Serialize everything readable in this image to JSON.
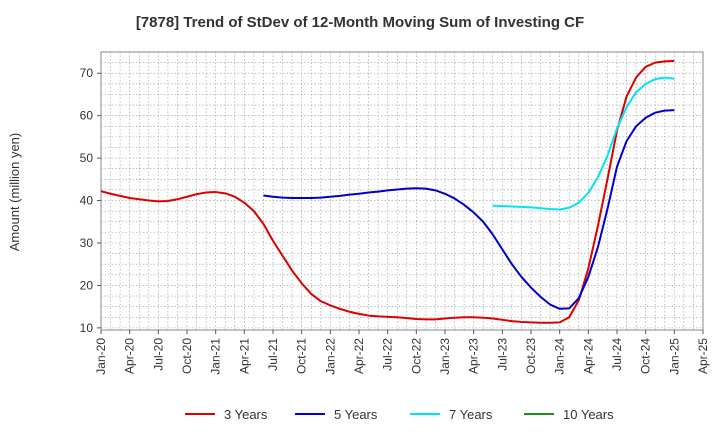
{
  "chart_data": {
    "type": "line",
    "title": "[7878]  Trend of StDev of 12-Month Moving Sum of Investing CF",
    "xlabel": "",
    "ylabel": "Amount (million yen)",
    "ylim": [
      9.5,
      75
    ],
    "yticks": [
      10,
      20,
      30,
      40,
      50,
      60,
      70
    ],
    "xticks": [
      "Jan-20",
      "Apr-20",
      "Jul-20",
      "Oct-20",
      "Jan-21",
      "Apr-21",
      "Jul-21",
      "Oct-21",
      "Jan-22",
      "Apr-22",
      "Jul-22",
      "Oct-22",
      "Jan-23",
      "Apr-23",
      "Jul-23",
      "Oct-23",
      "Jan-24",
      "Apr-24",
      "Jul-24",
      "Oct-24",
      "Jan-25",
      "Apr-25"
    ],
    "grid": true,
    "legend_position": "bottom",
    "series": [
      {
        "name": "3 Years",
        "color": "#dd0000",
        "points": [
          [
            "2020-01",
            42.2
          ],
          [
            "2020-02",
            41.6
          ],
          [
            "2020-03",
            41.1
          ],
          [
            "2020-04",
            40.6
          ],
          [
            "2020-05",
            40.3
          ],
          [
            "2020-06",
            40.0
          ],
          [
            "2020-07",
            39.8
          ],
          [
            "2020-08",
            39.9
          ],
          [
            "2020-09",
            40.3
          ],
          [
            "2020-10",
            40.9
          ],
          [
            "2020-11",
            41.5
          ],
          [
            "2020-12",
            41.9
          ],
          [
            "2021-01",
            42.0
          ],
          [
            "2021-02",
            41.7
          ],
          [
            "2021-03",
            40.9
          ],
          [
            "2021-04",
            39.5
          ],
          [
            "2021-05",
            37.5
          ],
          [
            "2021-06",
            34.5
          ],
          [
            "2021-07",
            30.5
          ],
          [
            "2021-08",
            27.0
          ],
          [
            "2021-09",
            23.5
          ],
          [
            "2021-10",
            20.5
          ],
          [
            "2021-11",
            18.0
          ],
          [
            "2021-12",
            16.3
          ],
          [
            "2022-01",
            15.3
          ],
          [
            "2022-02",
            14.5
          ],
          [
            "2022-03",
            13.8
          ],
          [
            "2022-04",
            13.3
          ],
          [
            "2022-05",
            12.9
          ],
          [
            "2022-06",
            12.7
          ],
          [
            "2022-07",
            12.6
          ],
          [
            "2022-08",
            12.5
          ],
          [
            "2022-09",
            12.3
          ],
          [
            "2022-10",
            12.1
          ],
          [
            "2022-11",
            12.0
          ],
          [
            "2022-12",
            12.0
          ],
          [
            "2023-01",
            12.2
          ],
          [
            "2023-02",
            12.4
          ],
          [
            "2023-03",
            12.5
          ],
          [
            "2023-04",
            12.5
          ],
          [
            "2023-05",
            12.4
          ],
          [
            "2023-06",
            12.2
          ],
          [
            "2023-07",
            11.9
          ],
          [
            "2023-08",
            11.6
          ],
          [
            "2023-09",
            11.4
          ],
          [
            "2023-10",
            11.3
          ],
          [
            "2023-11",
            11.2
          ],
          [
            "2023-12",
            11.2
          ],
          [
            "2024-01",
            11.3
          ],
          [
            "2024-02",
            12.5
          ],
          [
            "2024-03",
            16.5
          ],
          [
            "2024-04",
            24.0
          ],
          [
            "2024-05",
            34.0
          ],
          [
            "2024-06",
            45.0
          ],
          [
            "2024-07",
            56.5
          ],
          [
            "2024-08",
            64.5
          ],
          [
            "2024-09",
            69.0
          ],
          [
            "2024-10",
            71.5
          ],
          [
            "2024-11",
            72.5
          ],
          [
            "2024-12",
            72.8
          ],
          [
            "2025-01",
            72.9
          ]
        ]
      },
      {
        "name": "5 Years",
        "color": "#0000cc",
        "points": [
          [
            "2021-06",
            41.2
          ],
          [
            "2021-07",
            40.9
          ],
          [
            "2021-08",
            40.7
          ],
          [
            "2021-09",
            40.6
          ],
          [
            "2021-10",
            40.6
          ],
          [
            "2021-11",
            40.6
          ],
          [
            "2021-12",
            40.7
          ],
          [
            "2022-01",
            40.9
          ],
          [
            "2022-02",
            41.1
          ],
          [
            "2022-03",
            41.4
          ],
          [
            "2022-04",
            41.6
          ],
          [
            "2022-05",
            41.9
          ],
          [
            "2022-06",
            42.1
          ],
          [
            "2022-07",
            42.4
          ],
          [
            "2022-08",
            42.6
          ],
          [
            "2022-09",
            42.8
          ],
          [
            "2022-10",
            42.9
          ],
          [
            "2022-11",
            42.8
          ],
          [
            "2022-12",
            42.4
          ],
          [
            "2023-01",
            41.6
          ],
          [
            "2023-02",
            40.5
          ],
          [
            "2023-03",
            39.0
          ],
          [
            "2023-04",
            37.2
          ],
          [
            "2023-05",
            35.0
          ],
          [
            "2023-06",
            32.0
          ],
          [
            "2023-07",
            28.5
          ],
          [
            "2023-08",
            25.0
          ],
          [
            "2023-09",
            22.0
          ],
          [
            "2023-10",
            19.5
          ],
          [
            "2023-11",
            17.3
          ],
          [
            "2023-12",
            15.5
          ],
          [
            "2024-01",
            14.5
          ],
          [
            "2024-02",
            14.6
          ],
          [
            "2024-03",
            17.0
          ],
          [
            "2024-04",
            22.0
          ],
          [
            "2024-05",
            29.0
          ],
          [
            "2024-06",
            38.0
          ],
          [
            "2024-07",
            48.0
          ],
          [
            "2024-08",
            54.0
          ],
          [
            "2024-09",
            57.5
          ],
          [
            "2024-10",
            59.5
          ],
          [
            "2024-11",
            60.7
          ],
          [
            "2024-12",
            61.2
          ],
          [
            "2025-01",
            61.3
          ]
        ]
      },
      {
        "name": "7 Years",
        "color": "#00e5ee",
        "points": [
          [
            "2023-06",
            38.8
          ],
          [
            "2023-07",
            38.7
          ],
          [
            "2023-08",
            38.6
          ],
          [
            "2023-09",
            38.5
          ],
          [
            "2023-10",
            38.4
          ],
          [
            "2023-11",
            38.2
          ],
          [
            "2023-12",
            38.0
          ],
          [
            "2024-01",
            37.9
          ],
          [
            "2024-02",
            38.3
          ],
          [
            "2024-03",
            39.5
          ],
          [
            "2024-04",
            41.8
          ],
          [
            "2024-05",
            45.5
          ],
          [
            "2024-06",
            50.5
          ],
          [
            "2024-07",
            57.0
          ],
          [
            "2024-08",
            62.0
          ],
          [
            "2024-09",
            65.5
          ],
          [
            "2024-10",
            67.5
          ],
          [
            "2024-11",
            68.6
          ],
          [
            "2024-12",
            69.0
          ],
          [
            "2025-01",
            68.7
          ]
        ]
      },
      {
        "name": "10 Years",
        "color": "#228b22",
        "points": []
      }
    ]
  }
}
